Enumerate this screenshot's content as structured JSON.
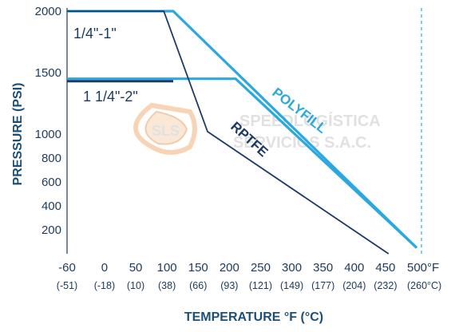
{
  "chart_data": {
    "type": "line",
    "xlabel": "TEMPERATURE °F (°C)",
    "ylabel": "PRESSURE (PSI)",
    "x_ticks": [
      {
        "value": -60,
        "label": "-60",
        "celsius": "(-51)"
      },
      {
        "value": 0,
        "label": "0",
        "celsius": "(-18)"
      },
      {
        "value": 50,
        "label": "50",
        "celsius": "(10)"
      },
      {
        "value": 100,
        "label": "100",
        "celsius": "(38)"
      },
      {
        "value": 150,
        "label": "150",
        "celsius": "(66)"
      },
      {
        "value": 200,
        "label": "200",
        "celsius": "(93)"
      },
      {
        "value": 250,
        "label": "250",
        "celsius": "(121)"
      },
      {
        "value": 300,
        "label": "300",
        "celsius": "(149)"
      },
      {
        "value": 350,
        "label": "350",
        "celsius": "(177)"
      },
      {
        "value": 400,
        "label": "400",
        "celsius": "(204)"
      },
      {
        "value": 450,
        "label": "450",
        "celsius": "(232)"
      },
      {
        "value": 500,
        "label": "500°F",
        "celsius": "(260°C)"
      }
    ],
    "y_ticks": [
      {
        "value": 200,
        "label": "200"
      },
      {
        "value": 400,
        "label": "400"
      },
      {
        "value": 600,
        "label": "600"
      },
      {
        "value": 800,
        "label": "800"
      },
      {
        "value": 1000,
        "label": "1000"
      },
      {
        "value": 1500,
        "label": "1500"
      },
      {
        "value": 2000,
        "label": "2000"
      }
    ],
    "xlim": [
      -60,
      500
    ],
    "ylim": [
      0,
      2000
    ],
    "y_scale": "piecewise (0–1000 linear, 1000–2000 compressed)",
    "grid": false,
    "series": [
      {
        "name": "POLYFILL",
        "size": "1/4\"-1\"",
        "color": "#2aa8df",
        "points": [
          [
            -60,
            2000
          ],
          [
            110,
            2000
          ],
          [
            500,
            50
          ]
        ]
      },
      {
        "name": "POLYFILL",
        "size": "1 1/4\"-2\"",
        "color": "#2aa8df",
        "points": [
          [
            -60,
            1450
          ],
          [
            210,
            1450
          ],
          [
            500,
            50
          ]
        ]
      },
      {
        "name": "RPTFE",
        "size": "1/4\"-1\"",
        "color": "#1b3a66",
        "points": [
          [
            -60,
            2000
          ],
          [
            95,
            2000
          ],
          [
            165,
            1020
          ],
          [
            455,
            0
          ]
        ]
      },
      {
        "name": "RPTFE",
        "size": "1 1/4\"-2\"",
        "color": "#1b3a66",
        "points": [
          [
            -60,
            1430
          ],
          [
            110,
            1430
          ]
        ]
      }
    ],
    "annotations": [
      {
        "text": "1/4\"-1\""
      },
      {
        "text": "1 1/4\"-2\""
      },
      {
        "text": "POLYFILL"
      },
      {
        "text": "RPTFE"
      }
    ],
    "watermark": {
      "logo": "SLS",
      "lines": [
        "SPEEDLOGÍSTICA",
        "SERVICIOS S.A.C."
      ]
    }
  }
}
